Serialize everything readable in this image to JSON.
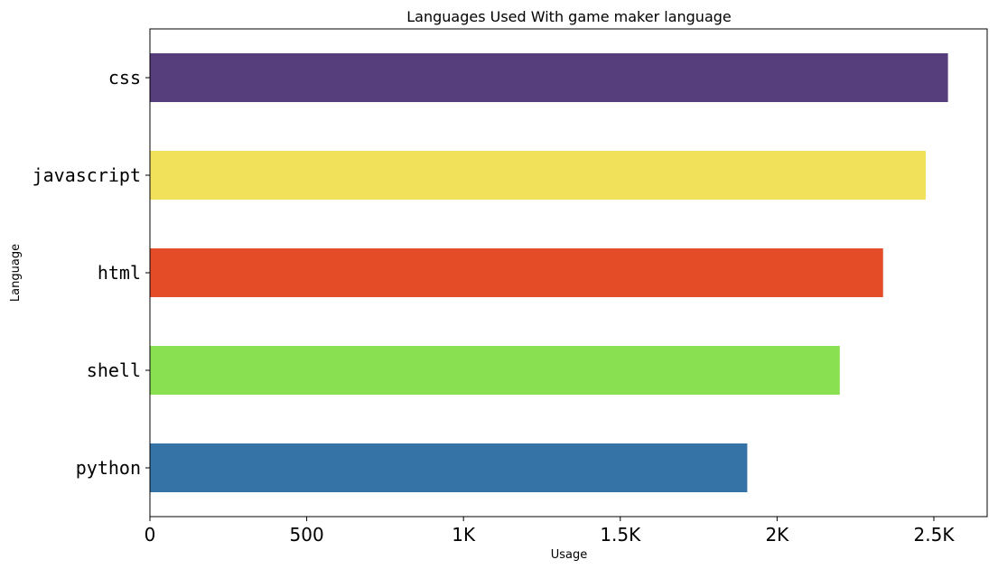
{
  "chart_data": {
    "type": "bar",
    "orientation": "horizontal",
    "title": "Languages Used With game maker language",
    "xlabel": "Usage",
    "ylabel": "Language",
    "categories": [
      "python",
      "shell",
      "html",
      "javascript",
      "css"
    ],
    "values": [
      1905,
      2200,
      2338,
      2474,
      2545
    ],
    "colors": [
      "#3572A5",
      "#89e051",
      "#e34c26",
      "#f1e05a",
      "#563d7c"
    ],
    "xlim": [
      0,
      2670
    ],
    "xticks": [
      {
        "value": 0,
        "label": "0"
      },
      {
        "value": 500,
        "label": "500"
      },
      {
        "value": 1000,
        "label": "1K"
      },
      {
        "value": 1500,
        "label": "1.5K"
      },
      {
        "value": 2000,
        "label": "2K"
      },
      {
        "value": 2500,
        "label": "2.5K"
      }
    ],
    "grid": false,
    "legend": "none"
  }
}
